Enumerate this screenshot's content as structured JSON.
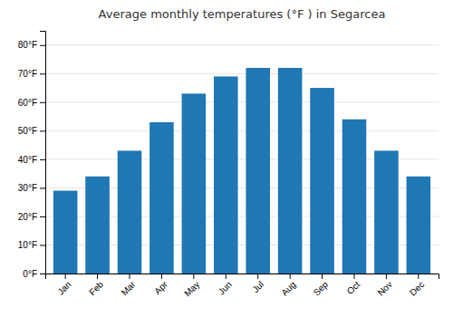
{
  "chart_data": {
    "type": "bar",
    "title": "Average monthly temperatures (°F ) in Segarcea",
    "categories": [
      "Jan",
      "Feb",
      "Mar",
      "Apr",
      "May",
      "Jun",
      "Jul",
      "Aug",
      "Sep",
      "Oct",
      "Nov",
      "Dec"
    ],
    "values": [
      29,
      34,
      43,
      53,
      63,
      69,
      72,
      72,
      65,
      54,
      43,
      34
    ],
    "ylim": [
      0,
      85
    ],
    "yticks": [
      {
        "value": 0,
        "label": "0°F"
      },
      {
        "value": 10,
        "label": "10°F"
      },
      {
        "value": 20,
        "label": "20°F"
      },
      {
        "value": 30,
        "label": "30°F"
      },
      {
        "value": 40,
        "label": "40°F"
      },
      {
        "value": 50,
        "label": "50°F"
      },
      {
        "value": 60,
        "label": "60°F"
      },
      {
        "value": 70,
        "label": "70°F"
      },
      {
        "value": 80,
        "label": "80°F"
      }
    ],
    "grid": true
  }
}
